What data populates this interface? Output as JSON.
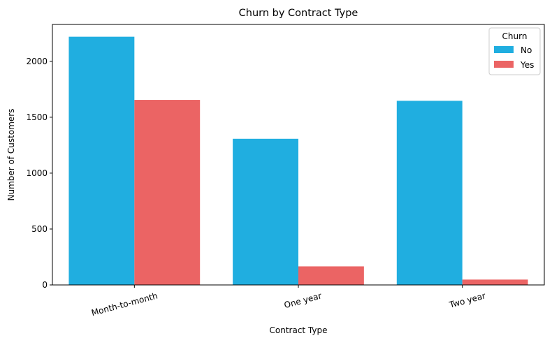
{
  "chart_data": {
    "type": "bar",
    "title": "Churn by Contract Type",
    "xlabel": "Contract Type",
    "ylabel": "Number of Customers",
    "categories": [
      "Month-to-month",
      "One year",
      "Two year"
    ],
    "series": [
      {
        "name": "No",
        "values": [
          2220,
          1307,
          1647
        ],
        "color": "#20aee0"
      },
      {
        "name": "Yes",
        "values": [
          1655,
          166,
          48
        ],
        "color": "#eb6464"
      }
    ],
    "ylim": [
      0,
      2330
    ],
    "yticks": [
      0,
      500,
      1000,
      1500,
      2000
    ],
    "legend": {
      "title": "Churn",
      "placement": "top-right"
    },
    "grid": false
  }
}
